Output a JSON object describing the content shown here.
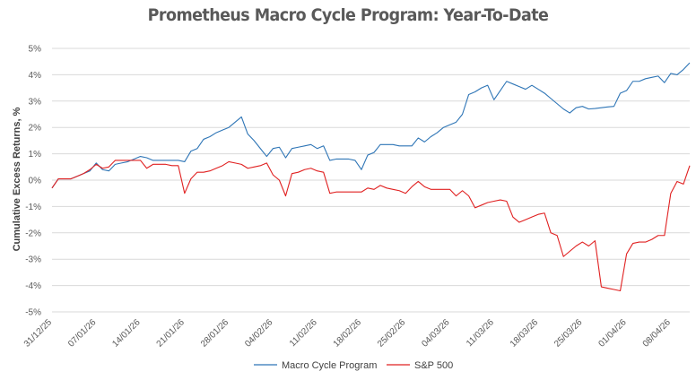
{
  "chart_data": {
    "type": "line",
    "title": "Prometheus Macro Cycle Program: Year-To-Date",
    "xlabel": "",
    "ylabel": "Cumulative Excess Returns, %",
    "ylim": [
      -5,
      5
    ],
    "xlim": [
      0,
      101
    ],
    "yticks": [
      5,
      4,
      3,
      2,
      1,
      0,
      -1,
      -2,
      -3,
      -4,
      -5
    ],
    "ytick_labels": [
      "5%",
      "4%",
      "3%",
      "2%",
      "1%",
      "0%",
      "-1%",
      "-2%",
      "-3%",
      "-4%",
      "-5%"
    ],
    "xticks": [
      0,
      7,
      14,
      21,
      28,
      35,
      42,
      49,
      56,
      63,
      70,
      77,
      84,
      91,
      98
    ],
    "xtick_labels": [
      "31/12/25",
      "07/01/26",
      "14/01/26",
      "21/01/26",
      "28/01/26",
      "04/02/26",
      "11/02/26",
      "18/02/26",
      "25/02/26",
      "04/03/26",
      "11/03/26",
      "18/03/26",
      "25/03/26",
      "01/04/26",
      "08/04/26"
    ],
    "grid": true,
    "legend_position": "bottom",
    "series": [
      {
        "name": "Macro Cycle Program",
        "color": "#2E75B6",
        "x": [
          0,
          1,
          2,
          3,
          4,
          5,
          6,
          7,
          8,
          9,
          10,
          11,
          12,
          13,
          14,
          15,
          16,
          17,
          18,
          19,
          20,
          21,
          22,
          23,
          24,
          25,
          26,
          27,
          28,
          29,
          30,
          31,
          32,
          33,
          34,
          35,
          36,
          37,
          38,
          39,
          40,
          41,
          42,
          43,
          44,
          45,
          46,
          47,
          48,
          49,
          50,
          51,
          52,
          53,
          54,
          55,
          56,
          57,
          58,
          59,
          60,
          61,
          62,
          63,
          64,
          65,
          66,
          67,
          68,
          69,
          70,
          71,
          72,
          73,
          74,
          75,
          76,
          77,
          78,
          79,
          80,
          81,
          82,
          83,
          84,
          85,
          86,
          87,
          88,
          89,
          90,
          91,
          92,
          93,
          94,
          95,
          96,
          97,
          98,
          99,
          100,
          101
        ],
        "values": [
          -0.3,
          0.05,
          0.05,
          0.05,
          0.15,
          0.25,
          0.35,
          0.65,
          0.4,
          0.35,
          0.6,
          0.65,
          0.7,
          0.8,
          0.9,
          0.85,
          0.75,
          0.75,
          0.75,
          0.75,
          0.75,
          0.7,
          1.1,
          1.2,
          1.55,
          1.65,
          1.8,
          1.9,
          2.0,
          2.2,
          2.4,
          1.75,
          1.5,
          1.2,
          0.9,
          1.2,
          1.25,
          0.85,
          1.2,
          1.25,
          1.3,
          1.35,
          1.2,
          1.3,
          0.75,
          0.8,
          0.8,
          0.8,
          0.75,
          0.4,
          0.95,
          1.05,
          1.35,
          1.35,
          1.35,
          1.3,
          1.3,
          1.3,
          1.6,
          1.45,
          1.65,
          1.8,
          2.0,
          2.1,
          2.2,
          2.5,
          3.25,
          3.35,
          3.5,
          3.6,
          3.05,
          3.4,
          3.75,
          3.65,
          3.55,
          3.45,
          3.6,
          3.45,
          3.3,
          3.1,
          2.9,
          2.7,
          2.55,
          2.75,
          2.8,
          2.7,
          2.72,
          2.75,
          2.78,
          2.8,
          3.3,
          3.4,
          3.75,
          3.75,
          3.85,
          3.9,
          3.95,
          3.7,
          4.05,
          4.0,
          4.2,
          4.45
        ]
      },
      {
        "name": "S&P 500",
        "color": "#E02020",
        "x": [
          0,
          1,
          2,
          3,
          4,
          5,
          6,
          7,
          8,
          9,
          10,
          11,
          12,
          13,
          14,
          15,
          16,
          17,
          18,
          19,
          20,
          21,
          22,
          23,
          24,
          25,
          26,
          27,
          28,
          29,
          30,
          31,
          32,
          33,
          34,
          35,
          36,
          37,
          38,
          39,
          40,
          41,
          42,
          43,
          44,
          45,
          46,
          47,
          48,
          49,
          50,
          51,
          52,
          53,
          54,
          55,
          56,
          57,
          58,
          59,
          60,
          61,
          62,
          63,
          64,
          65,
          66,
          67,
          68,
          69,
          70,
          71,
          72,
          73,
          74,
          75,
          76,
          77,
          78,
          79,
          80,
          81,
          82,
          83,
          84,
          85,
          86,
          87,
          88,
          89,
          90,
          91,
          92,
          93,
          94,
          95,
          96,
          97,
          98,
          99,
          100,
          101
        ],
        "values": [
          -0.3,
          0.05,
          0.05,
          0.05,
          0.15,
          0.25,
          0.4,
          0.6,
          0.45,
          0.5,
          0.75,
          0.75,
          0.75,
          0.75,
          0.75,
          0.45,
          0.6,
          0.6,
          0.6,
          0.55,
          0.55,
          -0.5,
          0.05,
          0.3,
          0.3,
          0.35,
          0.45,
          0.55,
          0.7,
          0.65,
          0.6,
          0.45,
          0.5,
          0.55,
          0.65,
          0.2,
          0.0,
          -0.6,
          0.25,
          0.3,
          0.4,
          0.45,
          0.35,
          0.3,
          -0.5,
          -0.45,
          -0.45,
          -0.45,
          -0.45,
          -0.45,
          -0.3,
          -0.35,
          -0.2,
          -0.3,
          -0.35,
          -0.4,
          -0.5,
          -0.25,
          -0.05,
          -0.25,
          -0.35,
          -0.35,
          -0.35,
          -0.35,
          -0.6,
          -0.4,
          -0.6,
          -1.05,
          -0.95,
          -0.85,
          -0.8,
          -0.75,
          -0.8,
          -1.4,
          -1.6,
          -1.5,
          -1.4,
          -1.3,
          -1.25,
          -2.0,
          -2.1,
          -2.9,
          -2.7,
          -2.5,
          -2.35,
          -2.5,
          -2.3,
          -4.05,
          -4.1,
          -4.15,
          -4.2,
          -2.8,
          -2.4,
          -2.35,
          -2.35,
          -2.25,
          -2.1,
          -2.1,
          -0.5,
          -0.05,
          -0.15,
          0.55
        ]
      }
    ]
  }
}
